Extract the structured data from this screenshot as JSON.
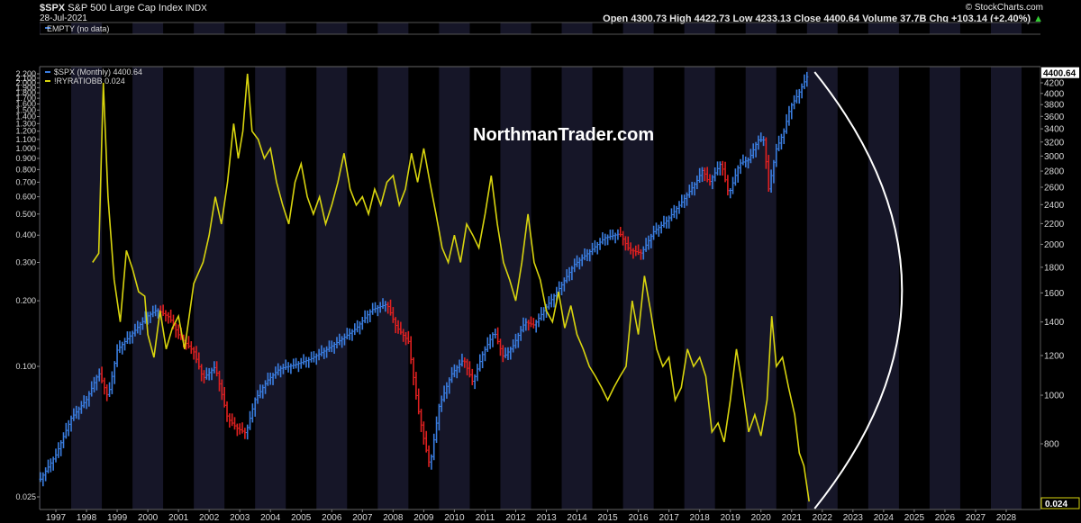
{
  "header": {
    "symbol": "$SPX",
    "name": "S&P 500 Large Cap Index",
    "exchange": "INDX",
    "date": "28-Jul-2021",
    "ohlc_text": "Open 4300.73  High 4422.73  Low 4233.13  Close 4400.64  Volume 37.7B  Chg +103.14 (+2.40%)",
    "brand": "© StockCharts.com",
    "up_arrow": "▲"
  },
  "top_panel": {
    "legend": "EMPTY (no data)"
  },
  "watermark": "NorthmanTrader.com",
  "colors": {
    "background": "#000000",
    "band": "#161628",
    "spx_up": "#3a7de0",
    "spx_down": "#e02020",
    "ratio": "#d8d40e",
    "arc": "#ffffff",
    "label_bg": "#ffffff"
  },
  "chart_data": {
    "type": "line",
    "x_ticks": [
      "1997",
      "1998",
      "1999",
      "2000",
      "2001",
      "2002",
      "2003",
      "2004",
      "2005",
      "2006",
      "2007",
      "2008",
      "2009",
      "2010",
      "2011",
      "2012",
      "2013",
      "2014",
      "2015",
      "2016",
      "2017",
      "2018",
      "2019",
      "2020",
      "2021",
      "2022",
      "2023",
      "2024",
      "2025",
      "2026",
      "2027",
      "2028"
    ],
    "y_left": {
      "scale": "log",
      "ticks": [
        "2.200",
        "2.100",
        "2.000",
        "1.900",
        "1.800",
        "1.700",
        "1.600",
        "1.500",
        "1.400",
        "1.300",
        "1.200",
        "1.100",
        "1.000",
        "0.900",
        "0.800",
        "0.700",
        "0.600",
        "0.500",
        "0.400",
        "0.300",
        "0.200",
        "0.100",
        "0.025"
      ]
    },
    "y_right": {
      "scale": "log",
      "ticks": [
        "4200",
        "4000",
        "3800",
        "3600",
        "3400",
        "3200",
        "3000",
        "2800",
        "2600",
        "2400",
        "2200",
        "2000",
        "1800",
        "1600",
        "1400",
        "1200",
        "1000",
        "800"
      ]
    },
    "legend": [
      {
        "name": "$SPX (Monthly) 4400.64",
        "color": "#3a7de0"
      },
      {
        "name": "!RYRATIOBB 0.024",
        "color": "#d8d40e"
      }
    ],
    "last_value_labels": {
      "spx": "4400.64",
      "ratio": "0.024"
    },
    "series": [
      {
        "name": "$SPX (Monthly)",
        "axis": "right",
        "points": [
          [
            1996.5,
            680
          ],
          [
            1997.0,
            760
          ],
          [
            1997.5,
            900
          ],
          [
            1998.0,
            980
          ],
          [
            1998.4,
            1110
          ],
          [
            1998.7,
            990
          ],
          [
            1999.0,
            1230
          ],
          [
            1999.5,
            1330
          ],
          [
            2000.0,
            1440
          ],
          [
            2000.3,
            1480
          ],
          [
            2000.7,
            1430
          ],
          [
            2001.0,
            1320
          ],
          [
            2001.5,
            1220
          ],
          [
            2001.8,
            1080
          ],
          [
            2002.2,
            1140
          ],
          [
            2002.6,
            900
          ],
          [
            2002.9,
            860
          ],
          [
            2003.2,
            840
          ],
          [
            2003.5,
            980
          ],
          [
            2003.9,
            1070
          ],
          [
            2004.3,
            1130
          ],
          [
            2004.8,
            1150
          ],
          [
            2005.3,
            1180
          ],
          [
            2005.8,
            1230
          ],
          [
            2006.3,
            1290
          ],
          [
            2006.8,
            1360
          ],
          [
            2007.3,
            1480
          ],
          [
            2007.8,
            1520
          ],
          [
            2008.1,
            1370
          ],
          [
            2008.5,
            1280
          ],
          [
            2008.8,
            950
          ],
          [
            2009.0,
            820
          ],
          [
            2009.2,
            720
          ],
          [
            2009.5,
            950
          ],
          [
            2009.9,
            1100
          ],
          [
            2010.3,
            1180
          ],
          [
            2010.6,
            1060
          ],
          [
            2010.9,
            1200
          ],
          [
            2011.3,
            1340
          ],
          [
            2011.6,
            1190
          ],
          [
            2011.9,
            1250
          ],
          [
            2012.3,
            1400
          ],
          [
            2012.6,
            1380
          ],
          [
            2013.0,
            1500
          ],
          [
            2013.5,
            1660
          ],
          [
            2013.9,
            1820
          ],
          [
            2014.4,
            1930
          ],
          [
            2014.9,
            2060
          ],
          [
            2015.4,
            2100
          ],
          [
            2015.7,
            1950
          ],
          [
            2016.1,
            1920
          ],
          [
            2016.5,
            2120
          ],
          [
            2016.9,
            2220
          ],
          [
            2017.4,
            2420
          ],
          [
            2017.9,
            2670
          ],
          [
            2018.1,
            2820
          ],
          [
            2018.3,
            2650
          ],
          [
            2018.7,
            2910
          ],
          [
            2018.95,
            2510
          ],
          [
            2019.3,
            2900
          ],
          [
            2019.6,
            2950
          ],
          [
            2019.9,
            3230
          ],
          [
            2020.1,
            3230
          ],
          [
            2020.25,
            2580
          ],
          [
            2020.5,
            3100
          ],
          [
            2020.75,
            3360
          ],
          [
            2020.95,
            3750
          ],
          [
            2021.2,
            3970
          ],
          [
            2021.4,
            4200
          ],
          [
            2021.57,
            4400.64
          ]
        ]
      },
      {
        "name": "!RYRATIOBB",
        "axis": "left",
        "points": [
          [
            1998.2,
            0.3
          ],
          [
            1998.4,
            0.33
          ],
          [
            1998.55,
            2.0
          ],
          [
            1998.7,
            0.6
          ],
          [
            1998.9,
            0.25
          ],
          [
            1999.1,
            0.16
          ],
          [
            1999.3,
            0.34
          ],
          [
            1999.5,
            0.28
          ],
          [
            1999.7,
            0.22
          ],
          [
            1999.9,
            0.21
          ],
          [
            2000.0,
            0.14
          ],
          [
            2000.2,
            0.11
          ],
          [
            2000.4,
            0.18
          ],
          [
            2000.6,
            0.12
          ],
          [
            2000.8,
            0.15
          ],
          [
            2001.0,
            0.17
          ],
          [
            2001.2,
            0.12
          ],
          [
            2001.5,
            0.24
          ],
          [
            2001.8,
            0.3
          ],
          [
            2002.0,
            0.4
          ],
          [
            2002.2,
            0.6
          ],
          [
            2002.4,
            0.45
          ],
          [
            2002.6,
            0.7
          ],
          [
            2002.8,
            1.3
          ],
          [
            2002.95,
            0.9
          ],
          [
            2003.1,
            1.2
          ],
          [
            2003.25,
            2.2
          ],
          [
            2003.4,
            1.2
          ],
          [
            2003.6,
            1.1
          ],
          [
            2003.8,
            0.9
          ],
          [
            2004.0,
            1.0
          ],
          [
            2004.2,
            0.7
          ],
          [
            2004.4,
            0.55
          ],
          [
            2004.6,
            0.45
          ],
          [
            2004.8,
            0.7
          ],
          [
            2005.0,
            0.85
          ],
          [
            2005.2,
            0.6
          ],
          [
            2005.4,
            0.5
          ],
          [
            2005.6,
            0.6
          ],
          [
            2005.8,
            0.45
          ],
          [
            2006.0,
            0.55
          ],
          [
            2006.2,
            0.7
          ],
          [
            2006.4,
            0.95
          ],
          [
            2006.6,
            0.65
          ],
          [
            2006.8,
            0.55
          ],
          [
            2007.0,
            0.6
          ],
          [
            2007.2,
            0.5
          ],
          [
            2007.4,
            0.65
          ],
          [
            2007.6,
            0.55
          ],
          [
            2007.8,
            0.7
          ],
          [
            2008.0,
            0.75
          ],
          [
            2008.2,
            0.55
          ],
          [
            2008.4,
            0.65
          ],
          [
            2008.6,
            0.95
          ],
          [
            2008.8,
            0.7
          ],
          [
            2009.0,
            1.0
          ],
          [
            2009.2,
            0.7
          ],
          [
            2009.4,
            0.5
          ],
          [
            2009.6,
            0.35
          ],
          [
            2009.8,
            0.3
          ],
          [
            2010.0,
            0.4
          ],
          [
            2010.2,
            0.3
          ],
          [
            2010.4,
            0.45
          ],
          [
            2010.6,
            0.4
          ],
          [
            2010.8,
            0.35
          ],
          [
            2011.0,
            0.5
          ],
          [
            2011.2,
            0.75
          ],
          [
            2011.4,
            0.45
          ],
          [
            2011.6,
            0.3
          ],
          [
            2011.8,
            0.25
          ],
          [
            2012.0,
            0.2
          ],
          [
            2012.2,
            0.3
          ],
          [
            2012.4,
            0.5
          ],
          [
            2012.6,
            0.3
          ],
          [
            2012.8,
            0.25
          ],
          [
            2013.0,
            0.18
          ],
          [
            2013.2,
            0.16
          ],
          [
            2013.4,
            0.22
          ],
          [
            2013.6,
            0.15
          ],
          [
            2013.8,
            0.19
          ],
          [
            2014.0,
            0.14
          ],
          [
            2014.2,
            0.12
          ],
          [
            2014.4,
            0.1
          ],
          [
            2014.6,
            0.09
          ],
          [
            2014.8,
            0.08
          ],
          [
            2015.0,
            0.07
          ],
          [
            2015.2,
            0.08
          ],
          [
            2015.4,
            0.09
          ],
          [
            2015.6,
            0.1
          ],
          [
            2015.8,
            0.2
          ],
          [
            2016.0,
            0.14
          ],
          [
            2016.2,
            0.26
          ],
          [
            2016.4,
            0.18
          ],
          [
            2016.6,
            0.12
          ],
          [
            2016.8,
            0.1
          ],
          [
            2017.0,
            0.11
          ],
          [
            2017.2,
            0.07
          ],
          [
            2017.4,
            0.08
          ],
          [
            2017.6,
            0.12
          ],
          [
            2017.8,
            0.1
          ],
          [
            2018.0,
            0.11
          ],
          [
            2018.2,
            0.09
          ],
          [
            2018.4,
            0.05
          ],
          [
            2018.6,
            0.055
          ],
          [
            2018.8,
            0.045
          ],
          [
            2019.0,
            0.07
          ],
          [
            2019.2,
            0.12
          ],
          [
            2019.4,
            0.08
          ],
          [
            2019.6,
            0.05
          ],
          [
            2019.8,
            0.06
          ],
          [
            2020.0,
            0.048
          ],
          [
            2020.2,
            0.07
          ],
          [
            2020.35,
            0.17
          ],
          [
            2020.5,
            0.1
          ],
          [
            2020.7,
            0.11
          ],
          [
            2020.9,
            0.08
          ],
          [
            2021.1,
            0.06
          ],
          [
            2021.25,
            0.04
          ],
          [
            2021.4,
            0.035
          ],
          [
            2021.57,
            0.024
          ]
        ]
      }
    ],
    "annotation": {
      "type": "arc",
      "color": "#ffffff"
    }
  }
}
